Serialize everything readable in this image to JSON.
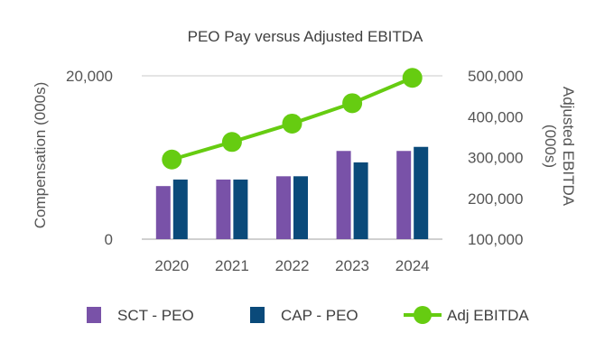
{
  "chart_data": {
    "type": "bar",
    "title": "PEO Pay versus Adjusted EBITDA",
    "categories": [
      "2020",
      "2021",
      "2022",
      "2023",
      "2024"
    ],
    "series": [
      {
        "name": "SCT - PEO",
        "kind": "bar",
        "axis": "left",
        "color": "#7952a8",
        "values": [
          6500,
          7300,
          7700,
          10800,
          10800
        ]
      },
      {
        "name": "CAP - PEO",
        "kind": "bar",
        "axis": "left",
        "color": "#0a4a7a",
        "values": [
          7300,
          7300,
          7700,
          9400,
          11300
        ]
      },
      {
        "name": "Adj EBITDA",
        "kind": "line",
        "axis": "right",
        "color": "#66cc11",
        "values": [
          295000,
          338000,
          383000,
          433000,
          495000
        ]
      }
    ],
    "y_left": {
      "label": "Compensation (000s)",
      "range": [
        0,
        20000
      ],
      "ticks": [
        0,
        20000
      ],
      "tick_labels": [
        "0",
        "20,000"
      ]
    },
    "y_right": {
      "label_lines": [
        "Adjusted EBITDA",
        "(000s)"
      ],
      "range": [
        100000,
        500000
      ],
      "ticks": [
        100000,
        200000,
        300000,
        400000,
        500000
      ],
      "tick_labels": [
        "100,000",
        "200,000",
        "300,000",
        "400,000",
        "500,000"
      ]
    },
    "grid": true,
    "legend_position": "bottom"
  }
}
